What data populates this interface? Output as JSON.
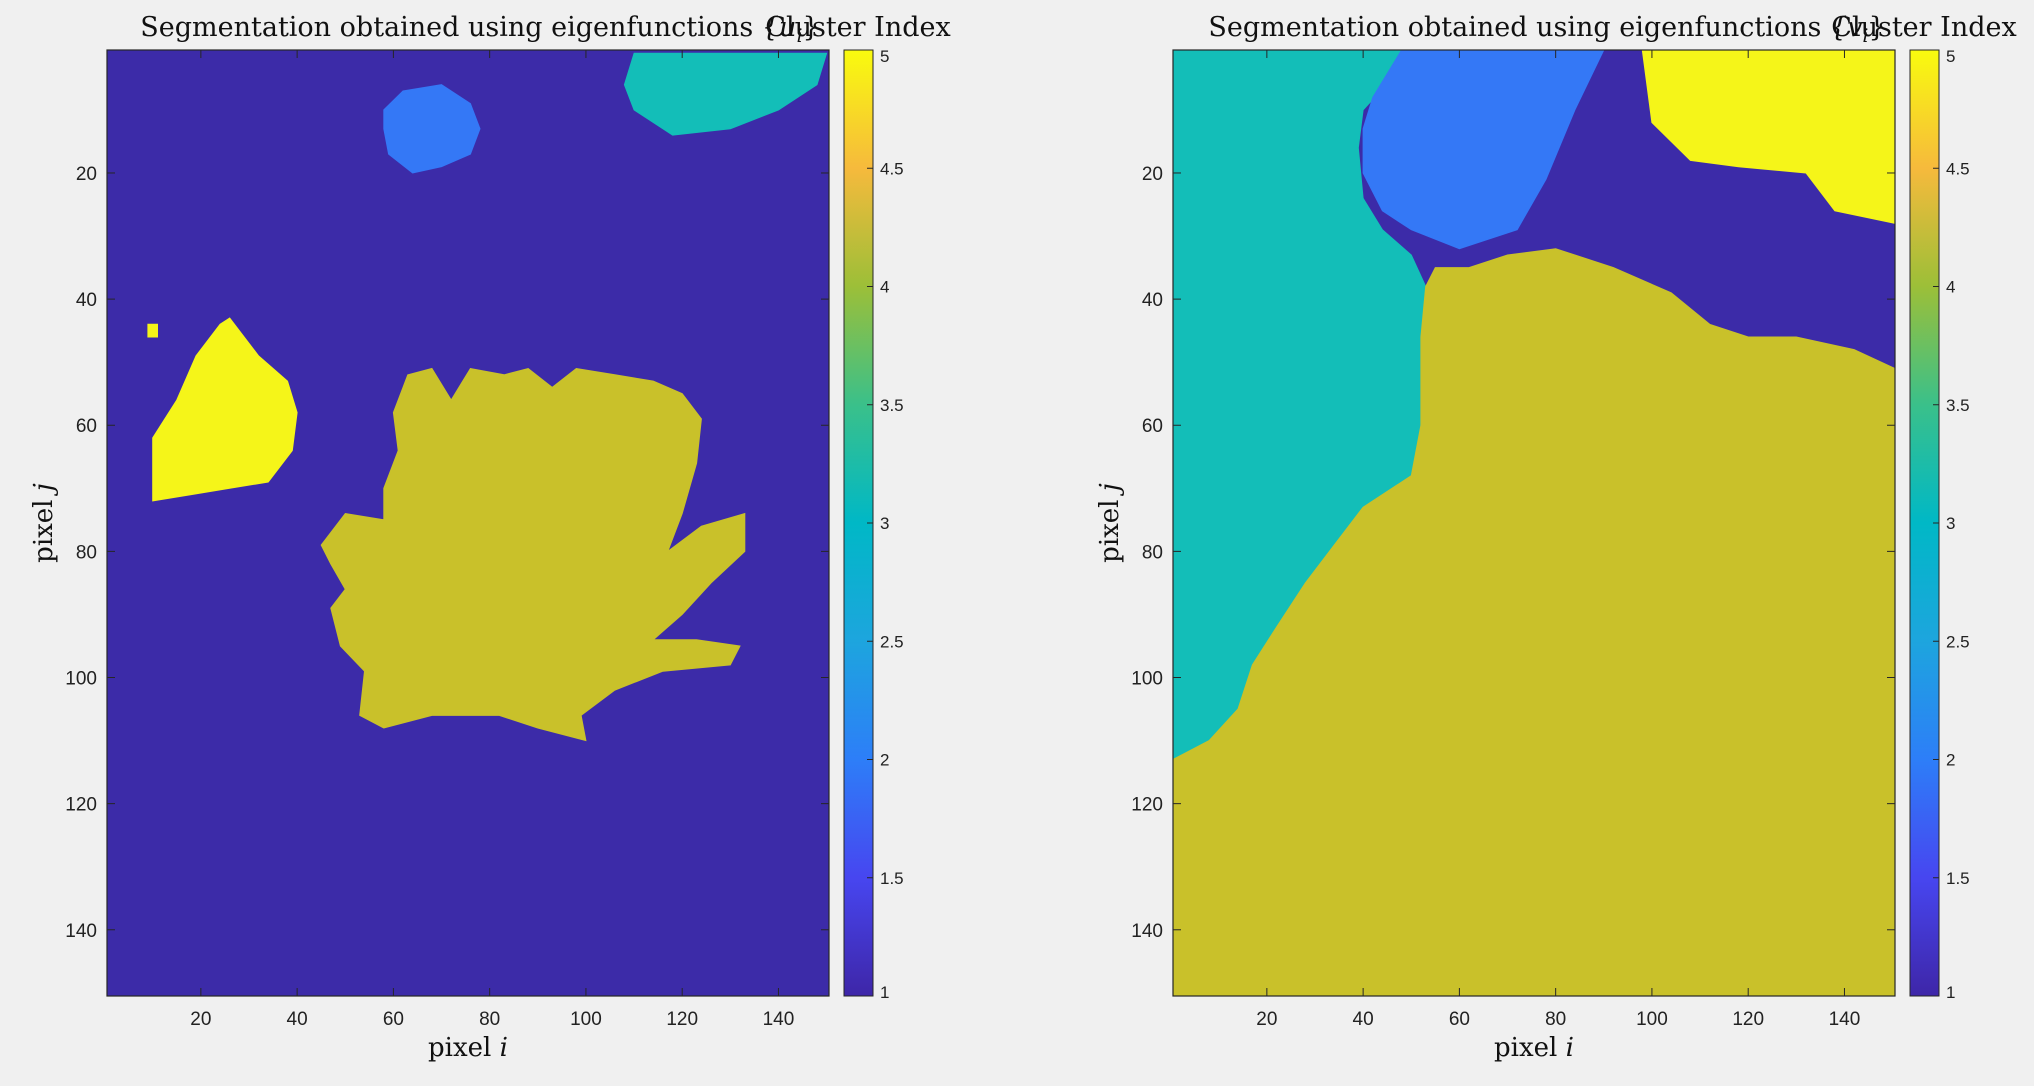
{
  "chart_data": [
    {
      "type": "heatmap",
      "title_prefix": "Segmentation obtained using eigenfunctions ",
      "title_math": "{u",
      "title_sub": "i",
      "title_close": "}",
      "xlabel_text": "pixel ",
      "xlabel_var": "i",
      "ylabel_text": "pixel ",
      "ylabel_var": "j",
      "xlim": [
        0.5,
        150.5
      ],
      "ylim": [
        0.5,
        150.5
      ],
      "y_reversed": true,
      "x_ticks": [
        20,
        40,
        60,
        80,
        100,
        120,
        140
      ],
      "y_ticks": [
        20,
        40,
        60,
        80,
        100,
        120,
        140
      ],
      "colorbar": {
        "title": "Cluster Index",
        "range": [
          1,
          5
        ],
        "ticks": [
          "1",
          "1.5",
          "2",
          "2.5",
          "3",
          "3.5",
          "4",
          "4.5",
          "5"
        ],
        "colormap": "parula"
      },
      "regions": [
        {
          "cluster": 1,
          "color": "#3c2ba8",
          "shape": "background"
        },
        {
          "cluster": 3,
          "color": "#13beb8",
          "label": "top-right patch",
          "poly": [
            [
              110,
              1
            ],
            [
              150,
              1
            ],
            [
              148,
              6
            ],
            [
              140,
              10
            ],
            [
              130,
              13
            ],
            [
              118,
              14
            ],
            [
              110,
              10
            ],
            [
              108,
              6
            ]
          ]
        },
        {
          "cluster": 2,
          "color": "#3478f6",
          "label": "small blob",
          "poly": [
            [
              58,
              10
            ],
            [
              62,
              7
            ],
            [
              70,
              6
            ],
            [
              76,
              9
            ],
            [
              78,
              13
            ],
            [
              76,
              17
            ],
            [
              70,
              19
            ],
            [
              64,
              20
            ],
            [
              59,
              17
            ],
            [
              58,
              13
            ]
          ]
        },
        {
          "cluster": 5,
          "color": "#f5f519",
          "label": "left blob",
          "poly": [
            [
              26,
              43
            ],
            [
              32,
              49
            ],
            [
              38,
              53
            ],
            [
              40,
              58
            ],
            [
              39,
              64
            ],
            [
              34,
              69
            ],
            [
              26,
              70
            ],
            [
              18,
              71
            ],
            [
              10,
              72
            ],
            [
              10,
              62
            ],
            [
              15,
              56
            ],
            [
              19,
              49
            ],
            [
              24,
              44
            ]
          ]
        },
        {
          "cluster": 5,
          "color": "#f5f519",
          "label": "dot",
          "poly": [
            [
              9,
              44
            ],
            [
              11,
              44
            ],
            [
              11,
              46
            ],
            [
              9,
              46
            ]
          ]
        },
        {
          "cluster": 4,
          "color": "#c9c12a",
          "label": "flower",
          "poly": [
            [
              63,
              52
            ],
            [
              68,
              51
            ],
            [
              72,
              56
            ],
            [
              76,
              51
            ],
            [
              83,
              52
            ],
            [
              88,
              51
            ],
            [
              93,
              54
            ],
            [
              98,
              51
            ],
            [
              106,
              52
            ],
            [
              114,
              53
            ],
            [
              120,
              55
            ],
            [
              124,
              59
            ],
            [
              123,
              66
            ],
            [
              120,
              74
            ],
            [
              117,
              80
            ],
            [
              124,
              76
            ],
            [
              133,
              74
            ],
            [
              133,
              80
            ],
            [
              126,
              85
            ],
            [
              120,
              90
            ],
            [
              114,
              94
            ],
            [
              123,
              94
            ],
            [
              132,
              95
            ],
            [
              130,
              98
            ],
            [
              116,
              99
            ],
            [
              106,
              102
            ],
            [
              99,
              106
            ],
            [
              100,
              110
            ],
            [
              90,
              108
            ],
            [
              82,
              106
            ],
            [
              68,
              106
            ],
            [
              58,
              108
            ],
            [
              53,
              106
            ],
            [
              54,
              99
            ],
            [
              49,
              95
            ],
            [
              47,
              89
            ],
            [
              50,
              86
            ],
            [
              47,
              82
            ],
            [
              45,
              79
            ],
            [
              50,
              74
            ],
            [
              58,
              75
            ],
            [
              58,
              70
            ],
            [
              61,
              64
            ],
            [
              60,
              58
            ],
            [
              62,
              54
            ]
          ]
        }
      ]
    },
    {
      "type": "heatmap",
      "title_prefix": "Segmentation obtained using eigenfunctions ",
      "title_math": "{v",
      "title_sub": "i",
      "title_close": "}",
      "xlabel_text": "pixel ",
      "xlabel_var": "i",
      "ylabel_text": "pixel ",
      "ylabel_var": "j",
      "xlim": [
        0.5,
        150.5
      ],
      "ylim": [
        0.5,
        150.5
      ],
      "y_reversed": true,
      "x_ticks": [
        20,
        40,
        60,
        80,
        100,
        120,
        140
      ],
      "y_ticks": [
        20,
        40,
        60,
        80,
        100,
        120,
        140
      ],
      "colorbar": {
        "title": "Cluster Index",
        "range": [
          1,
          5
        ],
        "ticks": [
          "1",
          "1.5",
          "2",
          "2.5",
          "3",
          "3.5",
          "4",
          "4.5",
          "5"
        ],
        "colormap": "parula"
      },
      "regions": [
        {
          "cluster": 1,
          "color": "#3c2ba8",
          "shape": "background"
        },
        {
          "cluster": 3,
          "color": "#13beb8",
          "label": "left region",
          "poly": [
            [
              0.5,
              0.5
            ],
            [
              48,
              0.5
            ],
            [
              46,
              5
            ],
            [
              40,
              10
            ],
            [
              39,
              16
            ],
            [
              40,
              24
            ],
            [
              44,
              29
            ],
            [
              50,
              33
            ],
            [
              53,
              38
            ],
            [
              52,
              46
            ],
            [
              52,
              60
            ],
            [
              50,
              68
            ],
            [
              40,
              73
            ],
            [
              34,
              79
            ],
            [
              28,
              85
            ],
            [
              22,
              92
            ],
            [
              17,
              98
            ],
            [
              14,
              105
            ],
            [
              8,
              110
            ],
            [
              3,
              112
            ],
            [
              0.5,
              113
            ]
          ]
        },
        {
          "cluster": 2,
          "color": "#3478f6",
          "label": "middle blob",
          "poly": [
            [
              48,
              0.5
            ],
            [
              90,
              0.5
            ],
            [
              84,
              10
            ],
            [
              78,
              21
            ],
            [
              72,
              29
            ],
            [
              60,
              32
            ],
            [
              50,
              29
            ],
            [
              44,
              26
            ],
            [
              40,
              20
            ],
            [
              40,
              13
            ],
            [
              42,
              8
            ]
          ]
        },
        {
          "cluster": 5,
          "color": "#f5f519",
          "label": "top-right region",
          "poly": [
            [
              98,
              0.5
            ],
            [
              150.5,
              0.5
            ],
            [
              150.5,
              28
            ],
            [
              138,
              26
            ],
            [
              132,
              20
            ],
            [
              118,
              19
            ],
            [
              108,
              18
            ],
            [
              100,
              12
            ]
          ]
        },
        {
          "cluster": 4,
          "color": "#c9c12a",
          "label": "lower region",
          "poly": [
            [
              0.5,
              113
            ],
            [
              3,
              112
            ],
            [
              8,
              110
            ],
            [
              14,
              105
            ],
            [
              17,
              98
            ],
            [
              22,
              92
            ],
            [
              28,
              85
            ],
            [
              34,
              79
            ],
            [
              40,
              73
            ],
            [
              50,
              68
            ],
            [
              52,
              60
            ],
            [
              52,
              46
            ],
            [
              53,
              38
            ],
            [
              55,
              35
            ],
            [
              62,
              35
            ],
            [
              70,
              33
            ],
            [
              80,
              32
            ],
            [
              92,
              35
            ],
            [
              104,
              39
            ],
            [
              112,
              44
            ],
            [
              120,
              46
            ],
            [
              130,
              46
            ],
            [
              142,
              48
            ],
            [
              150.5,
              51
            ],
            [
              150.5,
              150.5
            ],
            [
              0.5,
              150.5
            ]
          ]
        }
      ]
    }
  ]
}
